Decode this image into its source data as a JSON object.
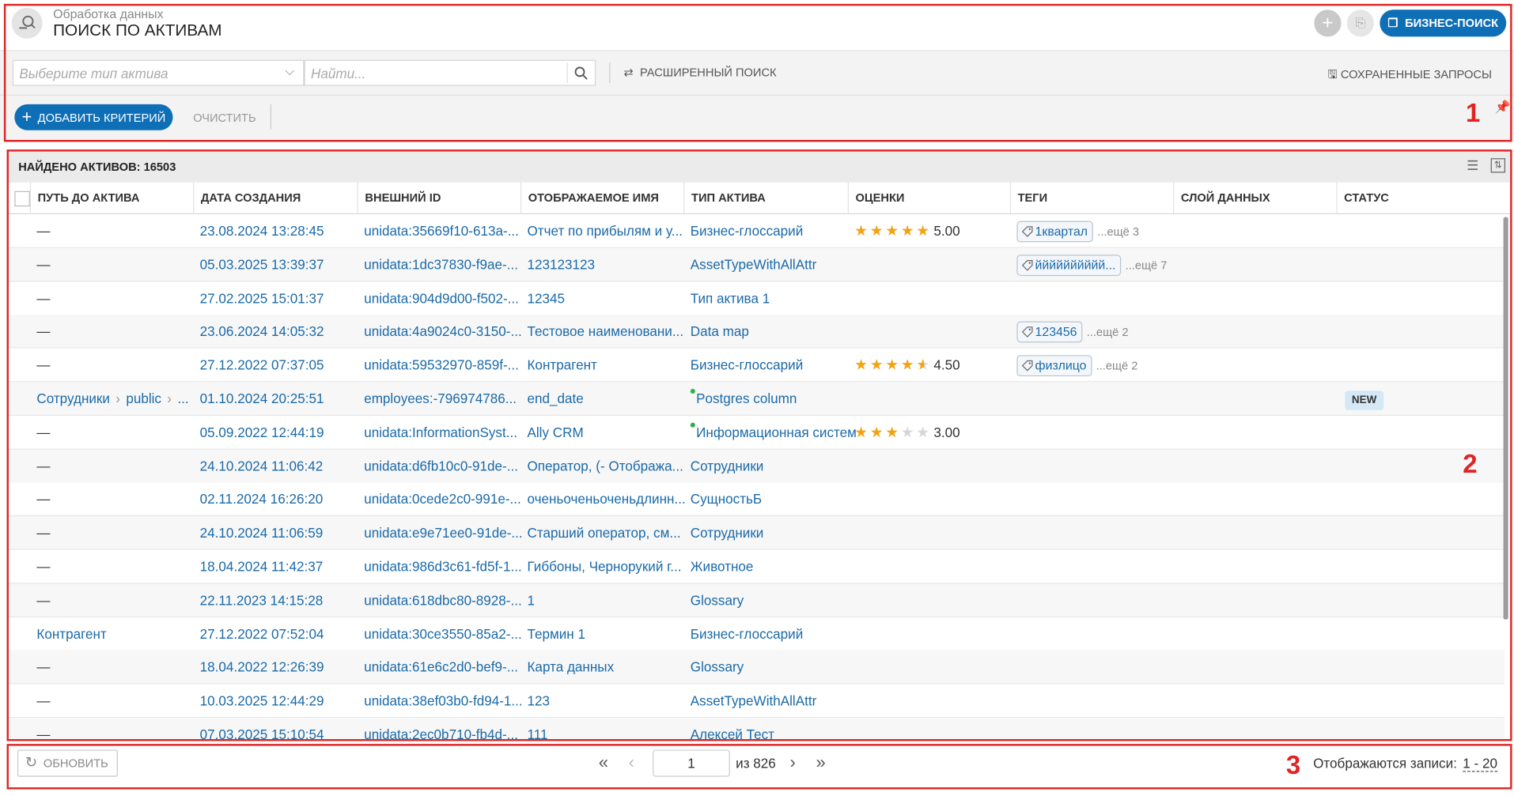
{
  "header": {
    "section": "Обработка данных",
    "title": "ПОИСК ПО АКТИВАМ",
    "business_search": "БИЗНЕС-ПОИСК"
  },
  "search": {
    "type_placeholder": "Выберите тип актива",
    "query_placeholder": "Найти...",
    "advanced": "РАСШИРЕННЫЙ ПОИСК",
    "saved": "СОХРАНЕННЫЕ ЗАПРОСЫ"
  },
  "criteria": {
    "add": "ДОБАВИТЬ КРИТЕРИЙ",
    "clear": "ОЧИСТИТЬ"
  },
  "results": {
    "found": "НАЙДЕНО АКТИВОВ: 16503"
  },
  "table": {
    "columns": [
      "ПУТЬ ДО АКТИВА",
      "ДАТА СОЗДАНИЯ",
      "ВНЕШНИЙ ID",
      "ОТОБРАЖАЕМОЕ ИМЯ",
      "ТИП АКТИВА",
      "ОЦЕНКИ",
      "ТЕГИ",
      "СЛОЙ ДАННЫХ",
      "СТАТУС"
    ],
    "rows": [
      {
        "path": [
          "—"
        ],
        "created": "23.08.2024 13:28:45",
        "external_id": "unidata:35669f10-613a-...",
        "name": "Отчет по прибылям и у...",
        "type": "Бизнес-глоссарий",
        "rating": {
          "value": 5,
          "label": "5.00"
        },
        "tags": {
          "tag": "1квартал",
          "more": "...ещё 3"
        }
      },
      {
        "path": [
          "—"
        ],
        "created": "05.03.2025 13:39:37",
        "external_id": "unidata:1dc37830-f9ae-...",
        "name": "123123123",
        "type": "AssetTypeWithAllAttr",
        "tags": {
          "tag": "йййййййййй...",
          "more": "...ещё 7"
        }
      },
      {
        "path": [
          "—"
        ],
        "created": "27.02.2025 15:01:37",
        "external_id": "unidata:904d9d00-f502-...",
        "name": "12345",
        "type": "Тип актива 1"
      },
      {
        "path": [
          "—"
        ],
        "created": "23.06.2024 14:05:32",
        "external_id": "unidata:4a9024c0-3150-...",
        "name": "Тестовое наименовани...",
        "type": "Data map",
        "tags": {
          "tag": "123456",
          "more": "...ещё 2"
        }
      },
      {
        "path": [
          "—"
        ],
        "created": "27.12.2022 07:37:05",
        "external_id": "unidata:59532970-859f-...",
        "name": "Контрагент",
        "type": "Бизнес-глоссарий",
        "rating": {
          "value": 4.5,
          "label": "4.50"
        },
        "tags": {
          "tag": "физлицо",
          "more": "...ещё 2"
        }
      },
      {
        "path": [
          "Сотрудники",
          "public",
          "..."
        ],
        "created": "01.10.2024 20:25:51",
        "external_id": "employees:-796974786...",
        "name": "end_date",
        "type": "Postgres column",
        "type_indicator": true,
        "status": "NEW"
      },
      {
        "path": [
          "—"
        ],
        "created": "05.09.2022 12:44:19",
        "external_id": "unidata:InformationSyst...",
        "name": "Ally CRM",
        "type": "Информационная систем",
        "type_indicator": true,
        "rating": {
          "value": 3,
          "label": "3.00"
        }
      },
      {
        "path": [
          "—"
        ],
        "created": "24.10.2024 11:06:42",
        "external_id": "unidata:d6fb10c0-91de-...",
        "name": "Оператор, (- Отобража...",
        "type": "Сотрудники"
      },
      {
        "path": [
          "—"
        ],
        "created": "02.11.2024 16:26:20",
        "external_id": "unidata:0cede2c0-991e-...",
        "name": "оченьоченьоченьдлинн...",
        "type": "СущностьБ"
      },
      {
        "path": [
          "—"
        ],
        "created": "24.10.2024 11:06:59",
        "external_id": "unidata:e9e71ee0-91de-...",
        "name": "Старший оператор, см...",
        "type": "Сотрудники"
      },
      {
        "path": [
          "—"
        ],
        "created": "18.04.2024 11:42:37",
        "external_id": "unidata:986d3c61-fd5f-1...",
        "name": "Гиббоны, Чернорукий г...",
        "type": "Животное"
      },
      {
        "path": [
          "—"
        ],
        "created": "22.11.2023 14:15:28",
        "external_id": "unidata:618dbc80-8928-...",
        "name": "1",
        "type": "Glossary"
      },
      {
        "path": [
          "Контрагент"
        ],
        "created": "27.12.2022 07:52:04",
        "external_id": "unidata:30ce3550-85a2-...",
        "name": "Термин 1",
        "type": "Бизнес-глоссарий"
      },
      {
        "path": [
          "—"
        ],
        "created": "18.04.2022 12:26:39",
        "external_id": "unidata:61e6c2d0-bef9-...",
        "name": "Карта данных",
        "type": "Glossary"
      },
      {
        "path": [
          "—"
        ],
        "created": "10.03.2025 12:44:29",
        "external_id": "unidata:38ef03b0-fd94-1...",
        "name": "123",
        "type": "AssetTypeWithAllAttr"
      },
      {
        "path": [
          "—"
        ],
        "created": "07.03.2025 15:10:54",
        "external_id": "unidata:2ec0b710-fb4d-...",
        "name": "111",
        "type": "Алексей Тест"
      }
    ]
  },
  "footer": {
    "refresh": "ОБНОВИТЬ",
    "page": "1",
    "of": "из 826",
    "shown_label": "Отображаются записи:",
    "shown_range": "1 - 20"
  },
  "annotations": [
    "1",
    "2",
    "3"
  ]
}
